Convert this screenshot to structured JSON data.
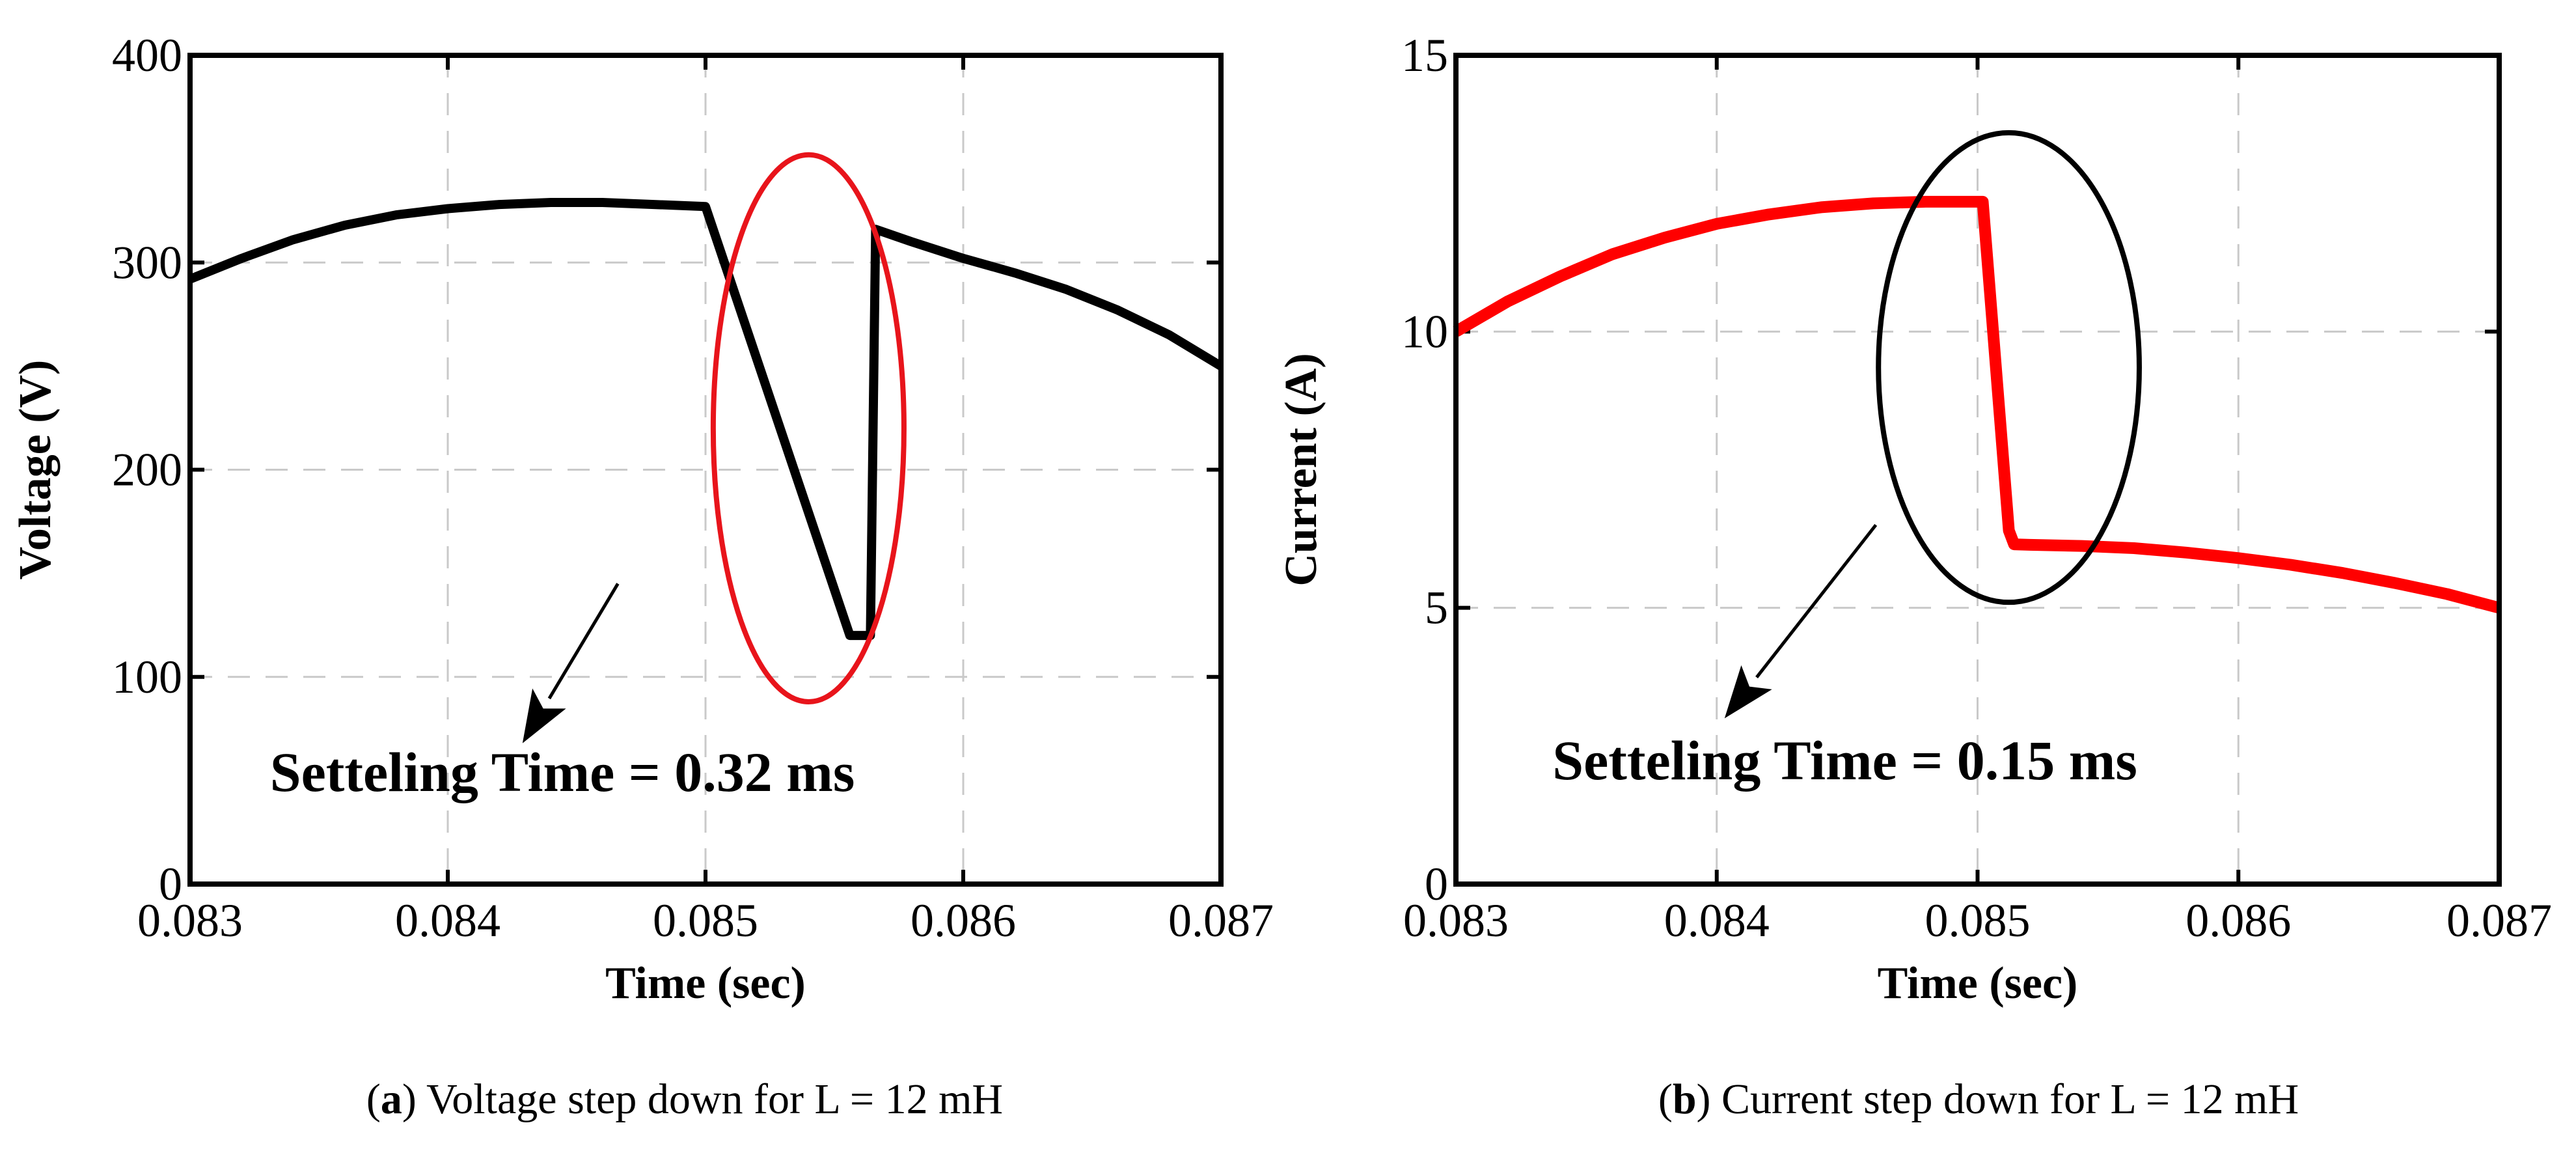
{
  "chart_data": [
    {
      "type": "line",
      "panel": "a",
      "caption_label": "a",
      "caption_text": "Voltage step down for L = 12 mH",
      "xlabel": "Time (sec)",
      "ylabel": "Voltage (V)",
      "xlim": [
        0.083,
        0.087
      ],
      "ylim": [
        0,
        400
      ],
      "xticks": [
        0.083,
        0.084,
        0.085,
        0.086,
        0.087
      ],
      "xtick_labels": [
        "0.083",
        "0.084",
        "0.085",
        "0.086",
        "0.087"
      ],
      "yticks": [
        0,
        100,
        200,
        300,
        400
      ],
      "ytick_labels": [
        "0",
        "100",
        "200",
        "300",
        "400"
      ],
      "grid": true,
      "series": [
        {
          "name": "Voltage",
          "color": "#000000",
          "x": [
            0.083,
            0.0832,
            0.0834,
            0.0836,
            0.0838,
            0.084,
            0.0842,
            0.0844,
            0.0846,
            0.0848,
            0.085,
            0.08556,
            0.08564,
            0.08566,
            0.0858,
            0.086,
            0.0862,
            0.0864,
            0.0866,
            0.0868,
            0.087
          ],
          "y": [
            292,
            302,
            311,
            318,
            323,
            326,
            328,
            329,
            329,
            328,
            327,
            120,
            120,
            316,
            310,
            302,
            295,
            287,
            277,
            265,
            250
          ]
        }
      ],
      "annotation": {
        "text": "Setteling Time = 0.32 ms",
        "ellipse_color": "#e8141b",
        "ellipse_center": [
          0.0854,
          220
        ],
        "ellipse_radii": [
          0.00037,
          132
        ],
        "text_anchor": [
          0.08331,
          45
        ],
        "arrow_from": [
          0.08466,
          145
        ],
        "arrow_to": [
          0.08429,
          68
        ]
      }
    },
    {
      "type": "line",
      "panel": "b",
      "caption_label": "b",
      "caption_text": "Current step down for L = 12 mH",
      "xlabel": "Time (sec)",
      "ylabel": "Current (A)",
      "xlim": [
        0.083,
        0.087
      ],
      "ylim": [
        0,
        15
      ],
      "xticks": [
        0.083,
        0.084,
        0.085,
        0.086,
        0.087
      ],
      "xtick_labels": [
        "0.083",
        "0.084",
        "0.085",
        "0.086",
        "0.087"
      ],
      "yticks": [
        0,
        5,
        10,
        15
      ],
      "ytick_labels": [
        "0",
        "5",
        "10",
        "15"
      ],
      "grid": true,
      "series": [
        {
          "name": "Current",
          "color": "#ff0000",
          "x": [
            0.083,
            0.0832,
            0.0834,
            0.0836,
            0.0838,
            0.084,
            0.0842,
            0.0844,
            0.0846,
            0.0848,
            0.08502,
            0.08512,
            0.08514,
            0.0852,
            0.0854,
            0.0856,
            0.0858,
            0.086,
            0.0862,
            0.0864,
            0.0866,
            0.0868,
            0.087
          ],
          "y": [
            10.0,
            10.55,
            11.0,
            11.4,
            11.7,
            11.95,
            12.12,
            12.25,
            12.32,
            12.35,
            12.35,
            6.4,
            6.15,
            6.14,
            6.12,
            6.08,
            6.0,
            5.9,
            5.78,
            5.63,
            5.45,
            5.25,
            5.0
          ]
        }
      ],
      "annotation": {
        "text": "Setteling Time = 0.15 ms",
        "ellipse_color": "#000000",
        "ellipse_center": [
          0.08512,
          9.35
        ],
        "ellipse_radii": [
          0.0005,
          4.25
        ],
        "text_anchor": [
          0.08337,
          1.9
        ],
        "arrow_from": [
          0.08461,
          6.5
        ],
        "arrow_to": [
          0.08403,
          3.0
        ]
      }
    }
  ]
}
